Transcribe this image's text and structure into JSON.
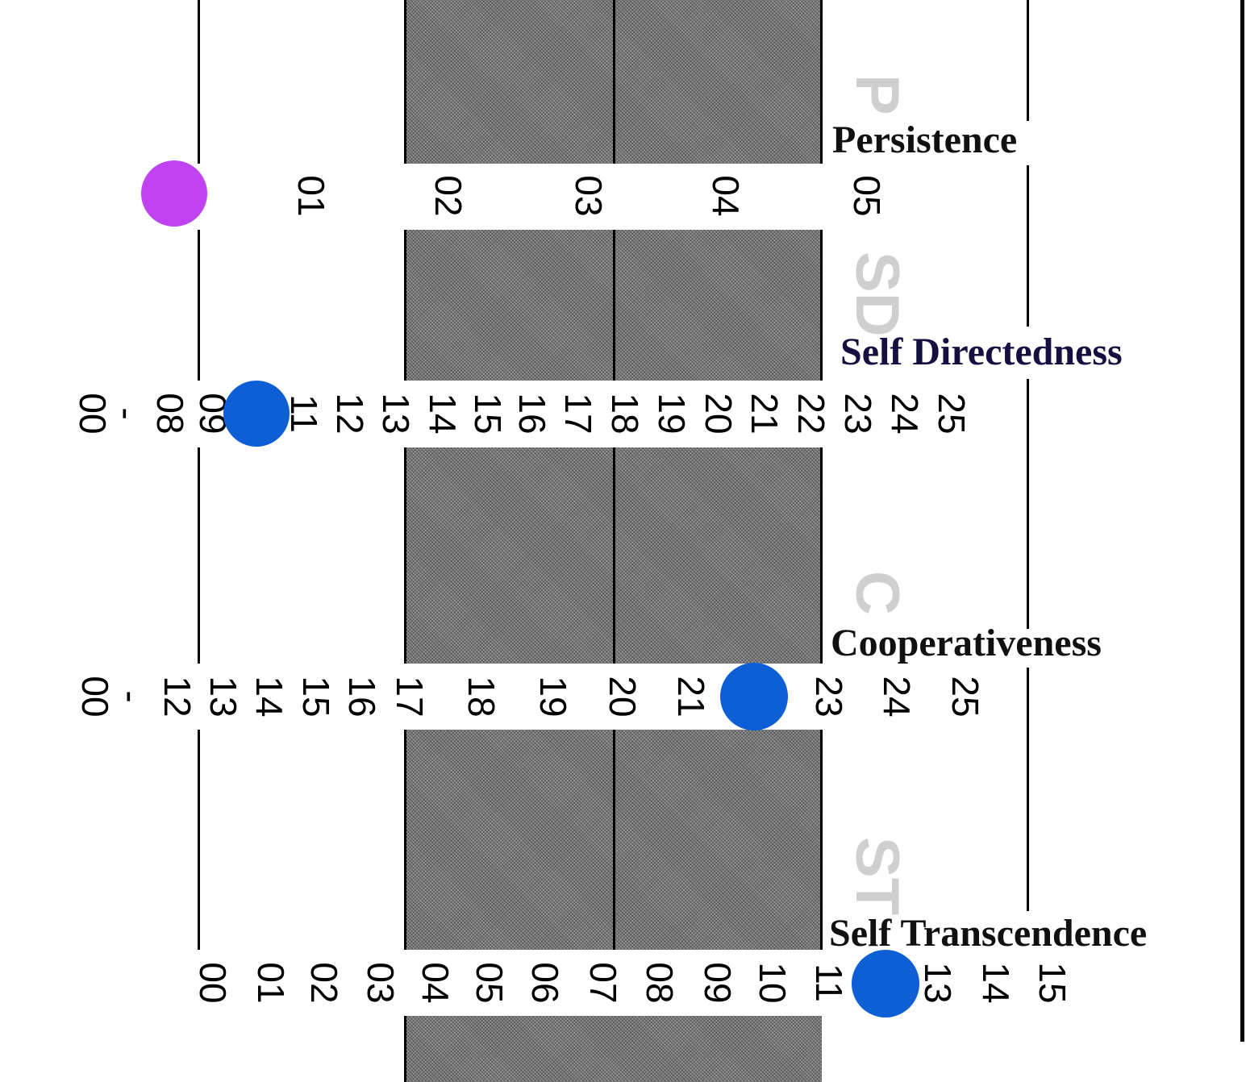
{
  "colors": {
    "purple": "#bf44f0",
    "blue": "#0e5ed6",
    "band": "#9a9a9a",
    "abbr": "#cfcfcf"
  },
  "chart_data": [
    {
      "type": "scatter",
      "scale": "Persistence",
      "abbr": "P",
      "ticks": [
        "01",
        "02",
        "03",
        "04",
        "05"
      ],
      "value": 0,
      "marker_color": "#bf44f0"
    },
    {
      "type": "scatter",
      "scale": "Self Directedness",
      "abbr": "SD",
      "ticks": [
        "00",
        "-",
        "08",
        "09",
        "11",
        "12",
        "13",
        "14",
        "15",
        "16",
        "17",
        "18",
        "19",
        "20",
        "21",
        "22",
        "23",
        "24",
        "25"
      ],
      "value": 10,
      "marker_color": "#0e5ed6"
    },
    {
      "type": "scatter",
      "scale": "Cooperativeness",
      "abbr": "C",
      "ticks": [
        "00",
        "-",
        "12",
        "13",
        "14",
        "15",
        "16",
        "17",
        "18",
        "19",
        "20",
        "21",
        "23",
        "24",
        "25"
      ],
      "value": 22,
      "marker_color": "#0e5ed6"
    },
    {
      "type": "scatter",
      "scale": "Self Transcendence",
      "abbr": "ST",
      "ticks": [
        "00",
        "01",
        "02",
        "03",
        "04",
        "05",
        "06",
        "07",
        "08",
        "09",
        "10",
        "11",
        "13",
        "14",
        "15"
      ],
      "value": 12,
      "marker_color": "#0e5ed6"
    }
  ]
}
